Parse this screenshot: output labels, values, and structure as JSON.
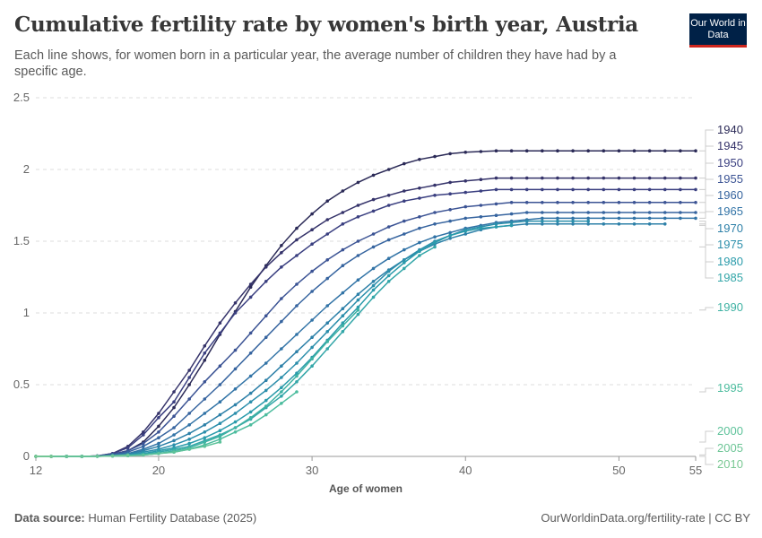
{
  "header": {
    "title": "Cumulative fertility rate by women's birth year, Austria",
    "subtitle": "Each line shows, for women born in a particular year, the average number of children they have had by a specific age.",
    "logo_text": "Our World in Data"
  },
  "footer": {
    "source_label": "Data source:",
    "source": "Human Fertility Database (2025)",
    "link": "OurWorldinData.org/fertility-rate | CC BY"
  },
  "chart_data": {
    "type": "line",
    "title": "Cumulative fertility rate by women's birth year, Austria",
    "xlabel": "Age of women",
    "ylabel": "",
    "xlim": [
      12,
      55
    ],
    "ylim": [
      0,
      2.5
    ],
    "x_ticks": [
      "12",
      "20",
      "30",
      "40",
      "50",
      "55"
    ],
    "y_ticks": [
      "0",
      "0.5",
      "1",
      "1.5",
      "2",
      "2.5"
    ],
    "grid": "horizontal dashed",
    "legend": "right (line end labels)",
    "series": [
      {
        "name": "1940",
        "color": "#2b2a57",
        "start_age": 12,
        "values": [
          0,
          0,
          0,
          0,
          0.003,
          0.015,
          0.04,
          0.1,
          0.21,
          0.34,
          0.5,
          0.67,
          0.85,
          1.01,
          1.18,
          1.33,
          1.47,
          1.59,
          1.69,
          1.78,
          1.85,
          1.91,
          1.96,
          2.0,
          2.04,
          2.07,
          2.09,
          2.11,
          2.12,
          2.125,
          2.13,
          2.13,
          2.13,
          2.13,
          2.13,
          2.13,
          2.13,
          2.13,
          2.13,
          2.13,
          2.13,
          2.13,
          2.13,
          2.13
        ]
      },
      {
        "name": "1945",
        "color": "#35336a",
        "start_age": 12,
        "values": [
          0,
          0,
          0,
          0,
          0.003,
          0.02,
          0.07,
          0.17,
          0.3,
          0.45,
          0.6,
          0.77,
          0.93,
          1.07,
          1.2,
          1.32,
          1.42,
          1.51,
          1.58,
          1.65,
          1.7,
          1.75,
          1.79,
          1.82,
          1.85,
          1.87,
          1.89,
          1.91,
          1.92,
          1.93,
          1.94,
          1.94,
          1.94,
          1.94,
          1.94,
          1.94,
          1.94,
          1.94,
          1.94,
          1.94,
          1.94,
          1.94,
          1.94,
          1.94
        ]
      },
      {
        "name": "1950",
        "color": "#3a3f80",
        "start_age": 12,
        "values": [
          0,
          0,
          0,
          0,
          0.003,
          0.02,
          0.06,
          0.15,
          0.27,
          0.38,
          0.55,
          0.72,
          0.86,
          1.0,
          1.11,
          1.22,
          1.32,
          1.4,
          1.48,
          1.55,
          1.62,
          1.67,
          1.71,
          1.75,
          1.78,
          1.8,
          1.82,
          1.83,
          1.84,
          1.85,
          1.86,
          1.86,
          1.86,
          1.86,
          1.86,
          1.86,
          1.86,
          1.86,
          1.86,
          1.86,
          1.86,
          1.86,
          1.86,
          1.86
        ]
      },
      {
        "name": "1955",
        "color": "#3b5394",
        "start_age": 12,
        "values": [
          0,
          0,
          0,
          0,
          0.002,
          0.015,
          0.04,
          0.09,
          0.17,
          0.28,
          0.4,
          0.52,
          0.63,
          0.74,
          0.86,
          0.98,
          1.1,
          1.2,
          1.29,
          1.37,
          1.44,
          1.5,
          1.55,
          1.6,
          1.64,
          1.67,
          1.7,
          1.72,
          1.74,
          1.75,
          1.76,
          1.77,
          1.77,
          1.77,
          1.77,
          1.77,
          1.77,
          1.77,
          1.77,
          1.77,
          1.77,
          1.77,
          1.77,
          1.77
        ]
      },
      {
        "name": "1960",
        "color": "#36649f",
        "start_age": 12,
        "values": [
          0,
          0,
          0,
          0,
          0.002,
          0.01,
          0.03,
          0.07,
          0.13,
          0.2,
          0.3,
          0.4,
          0.5,
          0.61,
          0.72,
          0.83,
          0.94,
          1.05,
          1.15,
          1.24,
          1.33,
          1.4,
          1.46,
          1.51,
          1.55,
          1.59,
          1.62,
          1.64,
          1.66,
          1.67,
          1.68,
          1.69,
          1.7,
          1.7,
          1.7,
          1.7,
          1.7,
          1.7,
          1.7,
          1.7,
          1.7,
          1.7,
          1.7,
          1.7
        ]
      },
      {
        "name": "1965",
        "color": "#3173a6",
        "start_age": 12,
        "values": [
          0,
          0,
          0,
          0,
          0.002,
          0.01,
          0.02,
          0.05,
          0.09,
          0.15,
          0.22,
          0.3,
          0.38,
          0.47,
          0.56,
          0.65,
          0.75,
          0.85,
          0.95,
          1.05,
          1.14,
          1.23,
          1.31,
          1.38,
          1.44,
          1.49,
          1.53,
          1.56,
          1.59,
          1.61,
          1.63,
          1.64,
          1.65,
          1.66,
          1.66,
          1.66,
          1.66,
          1.66,
          1.66,
          1.66,
          1.66,
          1.66,
          1.66,
          1.66
        ]
      },
      {
        "name": "1970",
        "color": "#2d80a8",
        "start_age": 12,
        "values": [
          0,
          0,
          0,
          0,
          0.001,
          0.005,
          0.015,
          0.04,
          0.07,
          0.11,
          0.16,
          0.22,
          0.29,
          0.36,
          0.44,
          0.53,
          0.63,
          0.73,
          0.83,
          0.93,
          1.03,
          1.13,
          1.22,
          1.3,
          1.37,
          1.43,
          1.48,
          1.52,
          1.55,
          1.58,
          1.6,
          1.61,
          1.62,
          1.62,
          1.62,
          1.62,
          1.62,
          1.62,
          1.62,
          1.62,
          1.62,
          1.62
        ]
      },
      {
        "name": "1975",
        "color": "#2b8eab",
        "start_age": 12,
        "values": [
          0,
          0,
          0,
          0,
          0.001,
          0.004,
          0.01,
          0.03,
          0.05,
          0.08,
          0.12,
          0.17,
          0.23,
          0.3,
          0.38,
          0.46,
          0.55,
          0.65,
          0.76,
          0.87,
          0.98,
          1.09,
          1.19,
          1.29,
          1.37,
          1.44,
          1.5,
          1.54,
          1.58,
          1.6,
          1.62,
          1.63,
          1.64,
          1.64,
          1.64,
          1.64,
          1.64
        ]
      },
      {
        "name": "1980",
        "color": "#2a9bab",
        "start_age": 12,
        "values": [
          0,
          0,
          0,
          0,
          0.001,
          0.003,
          0.008,
          0.02,
          0.04,
          0.06,
          0.09,
          0.13,
          0.18,
          0.24,
          0.31,
          0.39,
          0.48,
          0.58,
          0.69,
          0.81,
          0.93,
          1.04,
          1.16,
          1.26,
          1.35,
          1.43,
          1.49,
          1.54,
          1.57,
          1.59,
          1.6,
          1.61
        ]
      },
      {
        "name": "1985",
        "color": "#33a6a8",
        "start_age": 12,
        "values": [
          0,
          0,
          0,
          0,
          0.001,
          0.003,
          0.007,
          0.015,
          0.03,
          0.05,
          0.07,
          0.11,
          0.15,
          0.2,
          0.26,
          0.34,
          0.42,
          0.52,
          0.63,
          0.75,
          0.87,
          0.99,
          1.11,
          1.22,
          1.31,
          1.4,
          1.46
        ]
      },
      {
        "name": "1990",
        "color": "#3fb2a3",
        "start_age": 12,
        "values": [
          0,
          0,
          0,
          0,
          0.001,
          0.002,
          0.005,
          0.01,
          0.02,
          0.04,
          0.06,
          0.1,
          0.14,
          0.2,
          0.27,
          0.35,
          0.45,
          0.56,
          0.68,
          0.8,
          0.91,
          1.02
        ]
      },
      {
        "name": "1995",
        "color": "#4cbc9e",
        "start_age": 12,
        "values": [
          0,
          0,
          0,
          0,
          0.001,
          0.002,
          0.005,
          0.01,
          0.02,
          0.03,
          0.05,
          0.08,
          0.12,
          0.17,
          0.22,
          0.29,
          0.37,
          0.45
        ]
      },
      {
        "name": "2000",
        "color": "#5ec29a",
        "start_age": 12,
        "values": [
          0,
          0,
          0,
          0,
          0.001,
          0.003,
          0.005,
          0.01,
          0.02,
          0.03,
          0.05,
          0.07,
          0.1
        ]
      },
      {
        "name": "2005",
        "color": "#6dc596",
        "start_age": 12,
        "values": [
          0,
          0,
          0,
          0,
          0.001,
          0.004,
          0.01
        ]
      },
      {
        "name": "2010",
        "color": "#7ac893",
        "start_age": 12,
        "values": [
          0,
          0
        ]
      }
    ]
  }
}
